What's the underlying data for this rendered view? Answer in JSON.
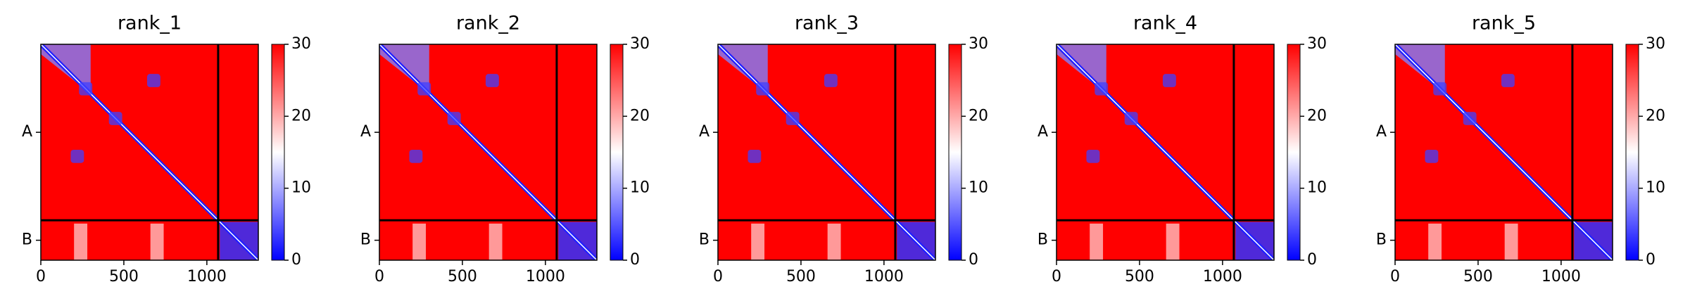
{
  "chart_data": [
    {
      "type": "heatmap",
      "title": "rank_1",
      "xlim": [
        0,
        1310
      ],
      "xticks": [
        0,
        500,
        1000
      ],
      "ylim": [
        1310,
        0
      ],
      "yticks": [
        {
          "value": 534,
          "label": "A"
        },
        {
          "value": 1189,
          "label": "B"
        }
      ],
      "chain_breaks": [
        1068
      ],
      "clim": [
        0,
        30
      ],
      "cticks": [
        0,
        10,
        20,
        30
      ],
      "colors": [
        "#0000ff",
        "#ffffff",
        "#ff0000"
      ]
    },
    {
      "type": "heatmap",
      "title": "rank_2",
      "xlim": [
        0,
        1310
      ],
      "xticks": [
        0,
        500,
        1000
      ],
      "ylim": [
        1310,
        0
      ],
      "yticks": [
        {
          "value": 534,
          "label": "A"
        },
        {
          "value": 1189,
          "label": "B"
        }
      ],
      "chain_breaks": [
        1068
      ],
      "clim": [
        0,
        30
      ],
      "cticks": [
        0,
        10,
        20,
        30
      ],
      "colors": [
        "#0000ff",
        "#ffffff",
        "#ff0000"
      ]
    },
    {
      "type": "heatmap",
      "title": "rank_3",
      "xlim": [
        0,
        1310
      ],
      "xticks": [
        0,
        500,
        1000
      ],
      "ylim": [
        1310,
        0
      ],
      "yticks": [
        {
          "value": 534,
          "label": "A"
        },
        {
          "value": 1189,
          "label": "B"
        }
      ],
      "chain_breaks": [
        1068
      ],
      "clim": [
        0,
        30
      ],
      "cticks": [
        0,
        10,
        20,
        30
      ],
      "colors": [
        "#0000ff",
        "#ffffff",
        "#ff0000"
      ]
    },
    {
      "type": "heatmap",
      "title": "rank_4",
      "xlim": [
        0,
        1310
      ],
      "xticks": [
        0,
        500,
        1000
      ],
      "ylim": [
        1310,
        0
      ],
      "yticks": [
        {
          "value": 534,
          "label": "A"
        },
        {
          "value": 1189,
          "label": "B"
        }
      ],
      "chain_breaks": [
        1068
      ],
      "clim": [
        0,
        30
      ],
      "cticks": [
        0,
        10,
        20,
        30
      ],
      "colors": [
        "#0000ff",
        "#ffffff",
        "#ff0000"
      ]
    },
    {
      "type": "heatmap",
      "title": "rank_5",
      "xlim": [
        0,
        1310
      ],
      "xticks": [
        0,
        500,
        1000
      ],
      "ylim": [
        1310,
        0
      ],
      "yticks": [
        {
          "value": 534,
          "label": "A"
        },
        {
          "value": 1189,
          "label": "B"
        }
      ],
      "chain_breaks": [
        1068
      ],
      "clim": [
        0,
        30
      ],
      "cticks": [
        0,
        10,
        20,
        30
      ],
      "colors": [
        "#0000ff",
        "#ffffff",
        "#ff0000"
      ]
    }
  ]
}
